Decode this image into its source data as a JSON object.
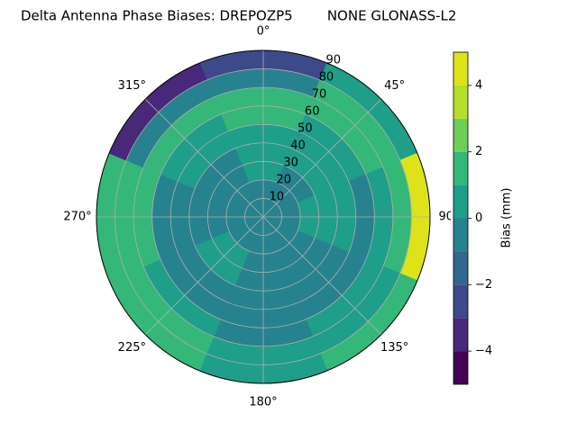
{
  "chart_data": {
    "type": "polar-contour",
    "title": "Delta Antenna Phase Biases: DREPOZP5        NONE GLONASS-L2",
    "colorbar_label": "Bias (mm)",
    "rlim": [
      0,
      90
    ],
    "rticks": [
      10,
      20,
      30,
      40,
      50,
      60,
      70,
      80,
      90
    ],
    "thetaticks": [
      {
        "value": 0,
        "label": "0°"
      },
      {
        "value": 45,
        "label": "45°"
      },
      {
        "value": 90,
        "label": "90°"
      },
      {
        "value": 135,
        "label": "135°"
      },
      {
        "value": 180,
        "label": "180°"
      },
      {
        "value": 225,
        "label": "225°"
      },
      {
        "value": 270,
        "label": "270°"
      },
      {
        "value": 315,
        "label": "315°"
      }
    ],
    "levels": [
      -5,
      -4,
      -3,
      -2,
      -1,
      0,
      1,
      2,
      3,
      4,
      5
    ],
    "colors": [
      "#440154",
      "#482878",
      "#3e4989",
      "#31688e",
      "#26828e",
      "#1f9e89",
      "#35b779",
      "#6ece58",
      "#b5de2b",
      "#dde318"
    ],
    "cticks": [
      {
        "value": -4,
        "label": "−4"
      },
      {
        "value": -2,
        "label": "−2"
      },
      0,
      2,
      4
    ],
    "z": [
      [
        -0.5,
        -0.5,
        -0.5,
        -0.5,
        -0.5,
        -0.5,
        -0.5,
        -0.5
      ],
      [
        -0.5,
        -0.5,
        -0.5,
        -0.5,
        -0.5,
        -0.5,
        -0.5,
        -0.5
      ],
      [
        0.5,
        -0.5,
        0.5,
        -0.5,
        -0.5,
        0.5,
        -0.5,
        -0.5
      ],
      [
        0.5,
        0.5,
        0.5,
        -0.5,
        -0.5,
        0.5,
        -0.5,
        -0.5
      ],
      [
        0.5,
        0.5,
        0.5,
        -0.5,
        -0.5,
        -0.5,
        -0.5,
        0.5
      ],
      [
        1.5,
        0.5,
        -0.5,
        -0.5,
        -0.5,
        -0.5,
        -0.5,
        0.5
      ],
      [
        1.5,
        1.5,
        0.5,
        0.5,
        -0.5,
        0.5,
        1.5,
        1.5
      ],
      [
        -0.5,
        1.5,
        1.5,
        0.5,
        0.5,
        1.5,
        1.5,
        -0.5
      ],
      [
        -2.5,
        0.5,
        4.5,
        1.5,
        0.5,
        1.5,
        1.5,
        -3.5
      ]
    ]
  }
}
